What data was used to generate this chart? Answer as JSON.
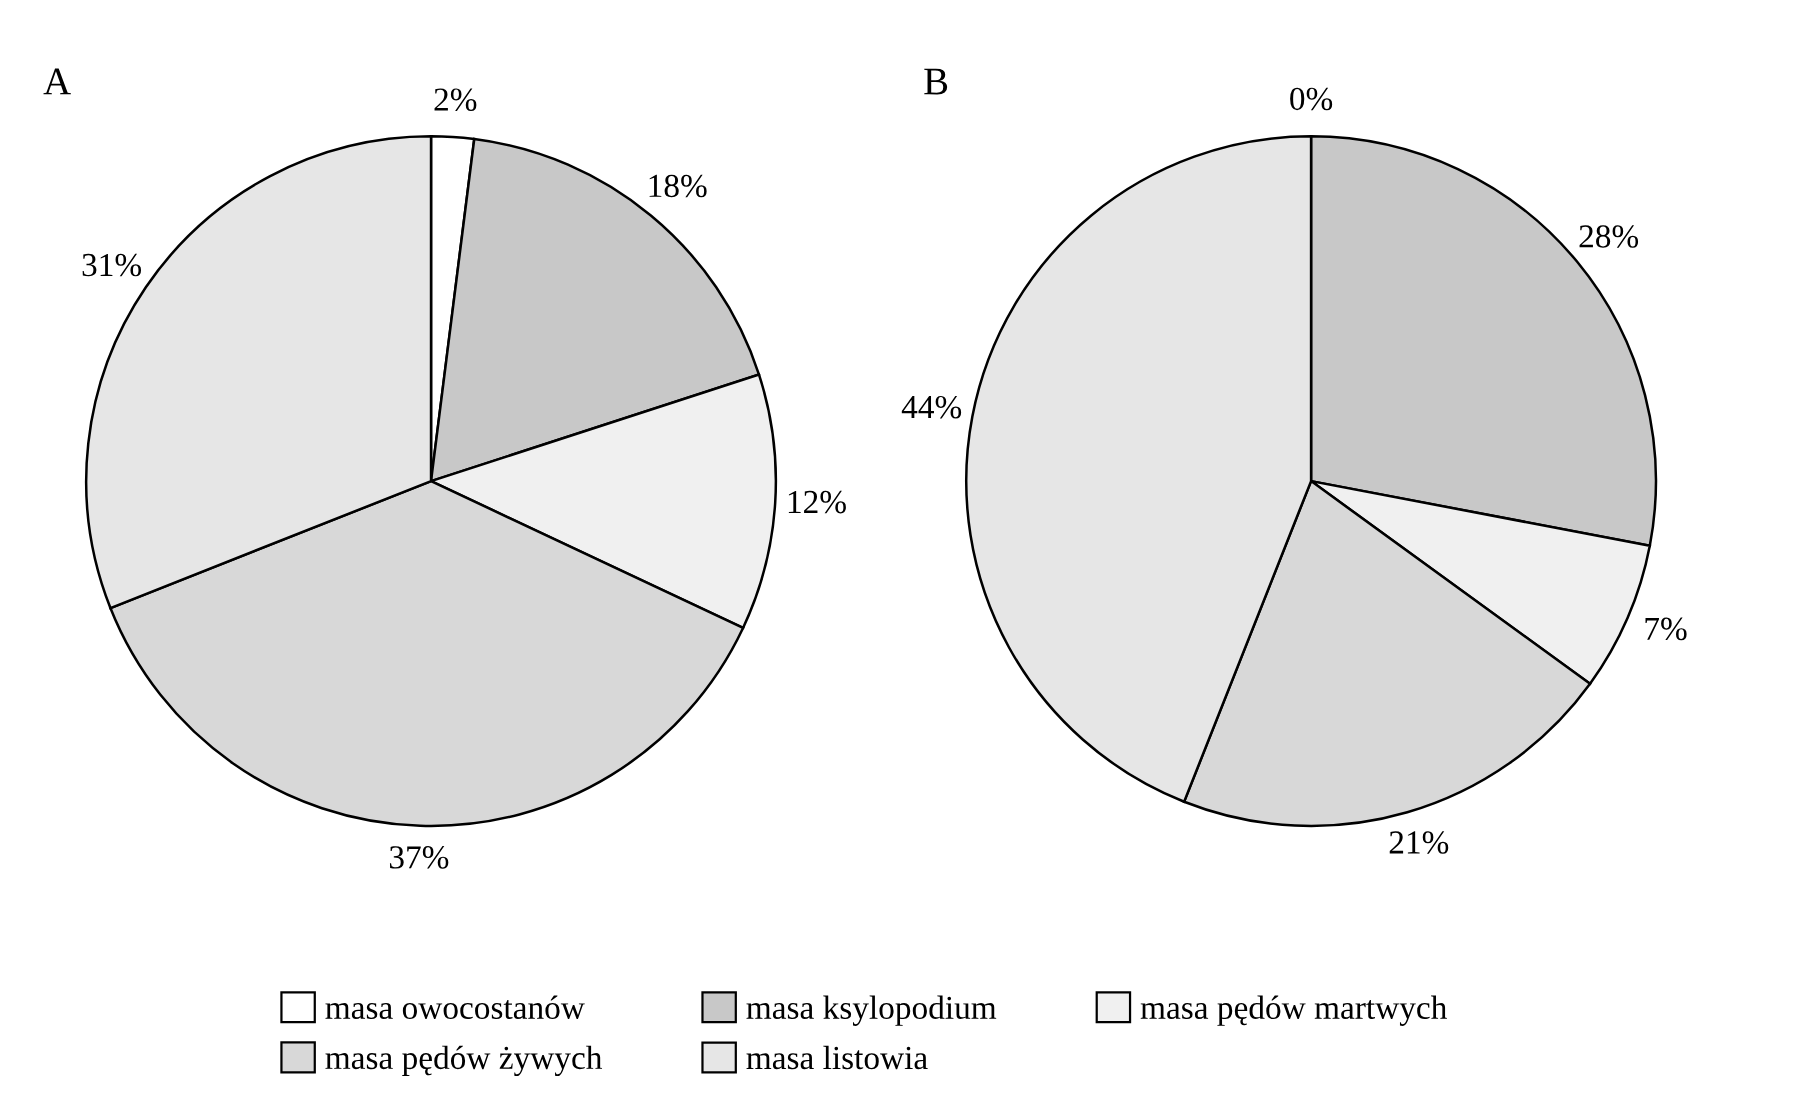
{
  "chart_data": [
    {
      "type": "pie",
      "title": "A",
      "categories": [
        "masa owocostanów",
        "masa ksylopodium",
        "masa pędów martwych",
        "masa pędów żywych",
        "masa listowia"
      ],
      "values": [
        2,
        18,
        12,
        37,
        31
      ],
      "value_labels": [
        "2%",
        "18%",
        "12%",
        "37%",
        "31%"
      ],
      "colors": [
        "#ffffff",
        "#c8c8c8",
        "#f0f0f0",
        "#d8d8d8",
        "#e6e6e6"
      ],
      "legend": "bottom"
    },
    {
      "type": "pie",
      "title": "B",
      "categories": [
        null,
        null,
        null,
        null,
        null
      ],
      "values": [
        0,
        28,
        7,
        21,
        44
      ],
      "value_labels": [
        "0%",
        "28%",
        "7%",
        "21%",
        "44%"
      ],
      "colors": [
        "#ffffff",
        "#c8c8c8",
        "#f0f0f0",
        "#d8d8d8",
        "#e6e6e6"
      ]
    }
  ]
}
